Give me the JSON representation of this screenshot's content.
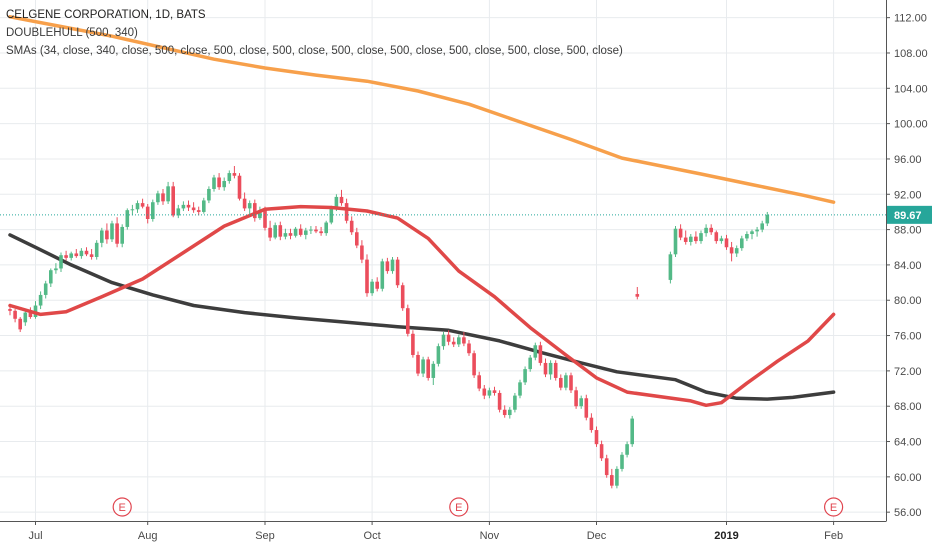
{
  "legend": {
    "line1": "CELGENE CORPORATION, 1D, BATS",
    "line2": "DOUBLEHULL (500, 340)",
    "line3": "SMAs (34, close, 340, close, 500, close, 500, close, 500, close, 500, close, 500, close, 500, close, 500, close, 500, close)"
  },
  "colors": {
    "up": "#53b987",
    "down": "#eb4d5c",
    "sma34": "#e04848",
    "sma340": "#3d3d3d",
    "sma500": "#f7a04b",
    "grid": "#e8ebee",
    "axis": "#555555",
    "last_price_bg": "#26a69a",
    "earnings": "#e0454f"
  },
  "chart_data": {
    "type": "candlestick",
    "ylim": [
      55,
      114
    ],
    "y_ticks": [
      "112.00",
      "108.00",
      "104.00",
      "100.00",
      "96.00",
      "92.00",
      "88.00",
      "84.00",
      "80.00",
      "76.00",
      "72.00",
      "68.00",
      "64.00",
      "60.00",
      "56.00"
    ],
    "x_ticks": [
      {
        "label": "Jul",
        "bar": 5,
        "bold": false
      },
      {
        "label": "Aug",
        "bar": 27,
        "bold": false
      },
      {
        "label": "Sep",
        "bar": 50,
        "bold": false
      },
      {
        "label": "Oct",
        "bar": 71,
        "bold": false
      },
      {
        "label": "Nov",
        "bar": 94,
        "bold": false
      },
      {
        "label": "Dec",
        "bar": 115,
        "bold": false
      },
      {
        "label": "2019",
        "bar": 135,
        "bold": true
      },
      {
        "label": "Feb",
        "bar": 156,
        "bold": false
      }
    ],
    "last_price": "89.67",
    "last_value": 89.67,
    "earnings_markers": [
      {
        "bar": 22,
        "label": "E"
      },
      {
        "bar": 88,
        "label": "E"
      },
      {
        "bar": 156,
        "label": "E"
      }
    ],
    "ohlc": [
      [
        79.0,
        79.6,
        78.3,
        78.8
      ],
      [
        78.8,
        79.0,
        77.5,
        77.9
      ],
      [
        77.9,
        78.1,
        76.4,
        76.7
      ],
      [
        77.5,
        79.0,
        77.1,
        78.6
      ],
      [
        78.6,
        79.2,
        77.9,
        78.1
      ],
      [
        78.1,
        79.9,
        77.9,
        79.4
      ],
      [
        79.4,
        81.0,
        79.0,
        80.6
      ],
      [
        80.6,
        82.2,
        80.2,
        81.9
      ],
      [
        81.9,
        83.6,
        81.5,
        83.4
      ],
      [
        83.4,
        84.2,
        83.0,
        83.6
      ],
      [
        83.6,
        85.4,
        83.2,
        85.1
      ],
      [
        85.1,
        85.6,
        84.5,
        84.8
      ],
      [
        84.8,
        85.5,
        84.5,
        85.3
      ],
      [
        85.3,
        85.8,
        84.8,
        85.0
      ],
      [
        85.0,
        85.9,
        84.7,
        85.6
      ],
      [
        85.6,
        86.0,
        85.0,
        85.2
      ],
      [
        85.2,
        85.8,
        84.6,
        84.9
      ],
      [
        84.9,
        86.8,
        84.6,
        86.5
      ],
      [
        86.5,
        88.2,
        86.0,
        87.9
      ],
      [
        87.9,
        88.7,
        86.4,
        86.9
      ],
      [
        86.9,
        89.0,
        86.6,
        88.7
      ],
      [
        88.7,
        89.4,
        86.0,
        86.4
      ],
      [
        86.4,
        88.6,
        86.0,
        88.3
      ],
      [
        88.3,
        90.4,
        88.0,
        90.2
      ],
      [
        90.2,
        90.8,
        89.6,
        90.3
      ],
      [
        90.3,
        91.3,
        89.9,
        91.0
      ],
      [
        91.0,
        91.5,
        90.4,
        90.6
      ],
      [
        90.6,
        90.9,
        88.7,
        89.2
      ],
      [
        89.2,
        91.4,
        88.9,
        91.1
      ],
      [
        91.1,
        92.4,
        90.8,
        92.1
      ],
      [
        92.1,
        92.6,
        90.8,
        91.2
      ],
      [
        91.2,
        93.4,
        90.9,
        92.9
      ],
      [
        92.9,
        93.4,
        89.4,
        89.6
      ],
      [
        89.6,
        90.8,
        89.3,
        90.4
      ],
      [
        90.4,
        91.2,
        90.1,
        90.8
      ],
      [
        90.8,
        91.3,
        90.1,
        90.5
      ],
      [
        90.5,
        91.1,
        89.9,
        90.2
      ],
      [
        90.2,
        90.6,
        89.6,
        90.0
      ],
      [
        90.0,
        91.6,
        89.8,
        91.3
      ],
      [
        91.3,
        92.9,
        91.0,
        92.6
      ],
      [
        92.6,
        94.2,
        92.3,
        93.9
      ],
      [
        93.9,
        94.4,
        92.5,
        92.8
      ],
      [
        92.8,
        93.9,
        92.4,
        93.5
      ],
      [
        93.5,
        94.7,
        93.2,
        94.4
      ],
      [
        94.4,
        95.2,
        93.8,
        94.1
      ],
      [
        94.1,
        94.4,
        91.3,
        91.5
      ],
      [
        91.5,
        92.2,
        90.1,
        90.4
      ],
      [
        90.4,
        91.3,
        89.5,
        91.0
      ],
      [
        91.0,
        91.4,
        88.9,
        89.3
      ],
      [
        89.3,
        90.6,
        89.1,
        90.2
      ],
      [
        90.2,
        90.6,
        87.9,
        88.2
      ],
      [
        88.2,
        89.0,
        86.7,
        87.1
      ],
      [
        87.1,
        88.8,
        86.9,
        88.5
      ],
      [
        88.5,
        88.9,
        86.8,
        87.2
      ],
      [
        87.2,
        88.1,
        86.9,
        87.6
      ],
      [
        87.6,
        88.1,
        86.9,
        87.3
      ],
      [
        87.3,
        88.3,
        87.1,
        88.1
      ],
      [
        88.1,
        88.6,
        87.2,
        87.4
      ],
      [
        87.4,
        88.2,
        86.9,
        87.9
      ],
      [
        87.9,
        88.4,
        87.5,
        88.0
      ],
      [
        88.0,
        88.4,
        87.6,
        87.8
      ],
      [
        87.8,
        88.3,
        87.3,
        87.6
      ],
      [
        87.6,
        89.0,
        87.3,
        88.8
      ],
      [
        88.8,
        90.7,
        88.6,
        90.4
      ],
      [
        90.4,
        92.0,
        90.1,
        91.7
      ],
      [
        91.7,
        92.5,
        90.7,
        91.0
      ],
      [
        91.0,
        91.5,
        88.7,
        89.0
      ],
      [
        89.0,
        89.5,
        87.4,
        87.7
      ],
      [
        87.7,
        88.2,
        85.9,
        86.2
      ],
      [
        86.2,
        86.8,
        84.2,
        84.6
      ],
      [
        84.6,
        85.2,
        80.4,
        80.8
      ],
      [
        80.8,
        82.4,
        80.5,
        82.1
      ],
      [
        82.1,
        82.6,
        81.0,
        81.3
      ],
      [
        81.3,
        84.7,
        81.0,
        84.4
      ],
      [
        84.4,
        84.8,
        83.0,
        83.3
      ],
      [
        83.3,
        84.9,
        83.0,
        84.6
      ],
      [
        84.6,
        84.9,
        81.4,
        81.7
      ],
      [
        81.7,
        82.0,
        78.8,
        79.1
      ],
      [
        79.1,
        79.5,
        75.9,
        76.2
      ],
      [
        76.2,
        76.6,
        73.5,
        73.8
      ],
      [
        73.8,
        74.2,
        71.4,
        71.7
      ],
      [
        71.7,
        73.6,
        71.3,
        73.3
      ],
      [
        73.3,
        73.6,
        70.9,
        71.2
      ],
      [
        71.2,
        73.1,
        70.4,
        72.8
      ],
      [
        72.8,
        75.1,
        72.5,
        74.8
      ],
      [
        74.8,
        76.4,
        74.4,
        76.1
      ],
      [
        76.1,
        76.6,
        74.9,
        75.3
      ],
      [
        75.3,
        75.8,
        74.7,
        75.0
      ],
      [
        75.0,
        76.1,
        74.7,
        75.8
      ],
      [
        75.8,
        76.4,
        74.8,
        75.1
      ],
      [
        75.1,
        75.5,
        73.7,
        74.0
      ],
      [
        74.0,
        74.3,
        71.2,
        71.5
      ],
      [
        71.5,
        71.9,
        69.7,
        70.0
      ],
      [
        70.0,
        70.4,
        68.8,
        69.2
      ],
      [
        69.2,
        70.1,
        68.9,
        69.8
      ],
      [
        69.8,
        70.2,
        69.2,
        69.5
      ],
      [
        69.5,
        69.8,
        67.3,
        67.6
      ],
      [
        67.6,
        68.1,
        66.7,
        67.0
      ],
      [
        67.0,
        67.9,
        66.6,
        67.6
      ],
      [
        67.6,
        69.5,
        67.3,
        69.2
      ],
      [
        69.2,
        71.0,
        68.9,
        70.7
      ],
      [
        70.7,
        72.5,
        70.4,
        72.2
      ],
      [
        72.2,
        73.8,
        71.9,
        73.5
      ],
      [
        73.5,
        75.2,
        73.2,
        74.9
      ],
      [
        74.9,
        75.3,
        72.6,
        72.9
      ],
      [
        72.9,
        73.4,
        71.3,
        71.6
      ],
      [
        71.6,
        73.2,
        71.0,
        72.9
      ],
      [
        72.9,
        73.2,
        70.9,
        71.2
      ],
      [
        71.2,
        71.6,
        69.8,
        70.1
      ],
      [
        70.1,
        71.8,
        69.8,
        71.5
      ],
      [
        71.5,
        71.8,
        69.5,
        69.8
      ],
      [
        69.8,
        70.2,
        67.7,
        68.0
      ],
      [
        68.0,
        69.2,
        67.7,
        68.9
      ],
      [
        68.9,
        69.3,
        66.4,
        66.7
      ],
      [
        66.7,
        67.2,
        65.0,
        65.3
      ],
      [
        65.3,
        65.7,
        63.4,
        63.7
      ],
      [
        63.7,
        64.1,
        61.8,
        62.1
      ],
      [
        62.1,
        62.5,
        59.9,
        60.2
      ],
      [
        60.2,
        60.9,
        58.7,
        59.0
      ],
      [
        59.0,
        61.2,
        58.7,
        60.9
      ],
      [
        60.9,
        62.8,
        60.6,
        62.5
      ],
      [
        62.5,
        64.0,
        62.2,
        63.7
      ],
      [
        63.7,
        66.9,
        63.4,
        66.6
      ],
      [
        80.7,
        81.5,
        80.1,
        80.4
      ],
      [
        82.3,
        85.5,
        81.9,
        85.2
      ],
      [
        85.2,
        88.4,
        84.9,
        88.1
      ],
      [
        88.1,
        88.6,
        86.8,
        87.1
      ],
      [
        87.1,
        87.9,
        86.3,
        86.6
      ],
      [
        86.6,
        87.5,
        86.2,
        87.2
      ],
      [
        87.2,
        87.8,
        86.4,
        86.7
      ],
      [
        86.7,
        87.9,
        86.4,
        87.6
      ],
      [
        87.6,
        88.6,
        87.2,
        88.2
      ],
      [
        88.2,
        88.6,
        87.4,
        87.7
      ],
      [
        87.7,
        87.9,
        86.4,
        86.7
      ],
      [
        86.7,
        87.3,
        86.4,
        87.0
      ],
      [
        87.0,
        87.4,
        85.7,
        86.0
      ],
      [
        86.0,
        86.6,
        84.4,
        85.3
      ],
      [
        85.3,
        86.2,
        84.9,
        85.9
      ],
      [
        85.9,
        87.3,
        85.6,
        87.0
      ],
      [
        87.0,
        87.8,
        86.7,
        87.5
      ],
      [
        87.5,
        88.0,
        86.9,
        87.8
      ],
      [
        87.8,
        88.3,
        87.2,
        88.0
      ],
      [
        88.0,
        89.0,
        87.7,
        88.7
      ],
      [
        88.7,
        90.0,
        88.4,
        89.67
      ]
    ],
    "gap_after_bar": 123,
    "sma34": [
      [
        0,
        79.4
      ],
      [
        6,
        78.4
      ],
      [
        11,
        78.7
      ],
      [
        18,
        80.4
      ],
      [
        26,
        82.4
      ],
      [
        34,
        85.4
      ],
      [
        42,
        88.4
      ],
      [
        50,
        90.3
      ],
      [
        57,
        90.6
      ],
      [
        63,
        90.5
      ],
      [
        70,
        90.1
      ],
      [
        76,
        89.3
      ],
      [
        82,
        87.0
      ],
      [
        88,
        83.3
      ],
      [
        95,
        80.4
      ],
      [
        102,
        76.9
      ],
      [
        109,
        73.8
      ],
      [
        115,
        71.2
      ],
      [
        121,
        69.6
      ],
      [
        128,
        68.6
      ],
      [
        131,
        68.1
      ],
      [
        134,
        68.4
      ],
      [
        139,
        70.6
      ],
      [
        145,
        73.1
      ],
      [
        151,
        75.4
      ],
      [
        156,
        78.4
      ]
    ],
    "sma340": [
      [
        0,
        87.4
      ],
      [
        5,
        86.0
      ],
      [
        12,
        84.0
      ],
      [
        20,
        82.0
      ],
      [
        28,
        80.6
      ],
      [
        36,
        79.4
      ],
      [
        46,
        78.6
      ],
      [
        56,
        78.0
      ],
      [
        66,
        77.5
      ],
      [
        76,
        77.0
      ],
      [
        86,
        76.6
      ],
      [
        96,
        75.4
      ],
      [
        104,
        74.1
      ],
      [
        112,
        72.9
      ],
      [
        119,
        71.9
      ],
      [
        125,
        71.0
      ],
      [
        131,
        69.6
      ],
      [
        137,
        68.9
      ],
      [
        143,
        68.8
      ],
      [
        148,
        69.0
      ],
      [
        156,
        69.6
      ]
    ],
    "sma500": [
      [
        0,
        112.1
      ],
      [
        10,
        111.0
      ],
      [
        20,
        109.9
      ],
      [
        30,
        108.6
      ],
      [
        40,
        107.3
      ],
      [
        50,
        106.3
      ],
      [
        60,
        105.5
      ],
      [
        70,
        104.8
      ],
      [
        80,
        103.7
      ],
      [
        90,
        102.2
      ],
      [
        100,
        100.2
      ],
      [
        110,
        98.2
      ],
      [
        120,
        96.1
      ],
      [
        130,
        94.3
      ],
      [
        140,
        93.1
      ],
      [
        150,
        91.9
      ],
      [
        156,
        91.1
      ]
    ]
  }
}
